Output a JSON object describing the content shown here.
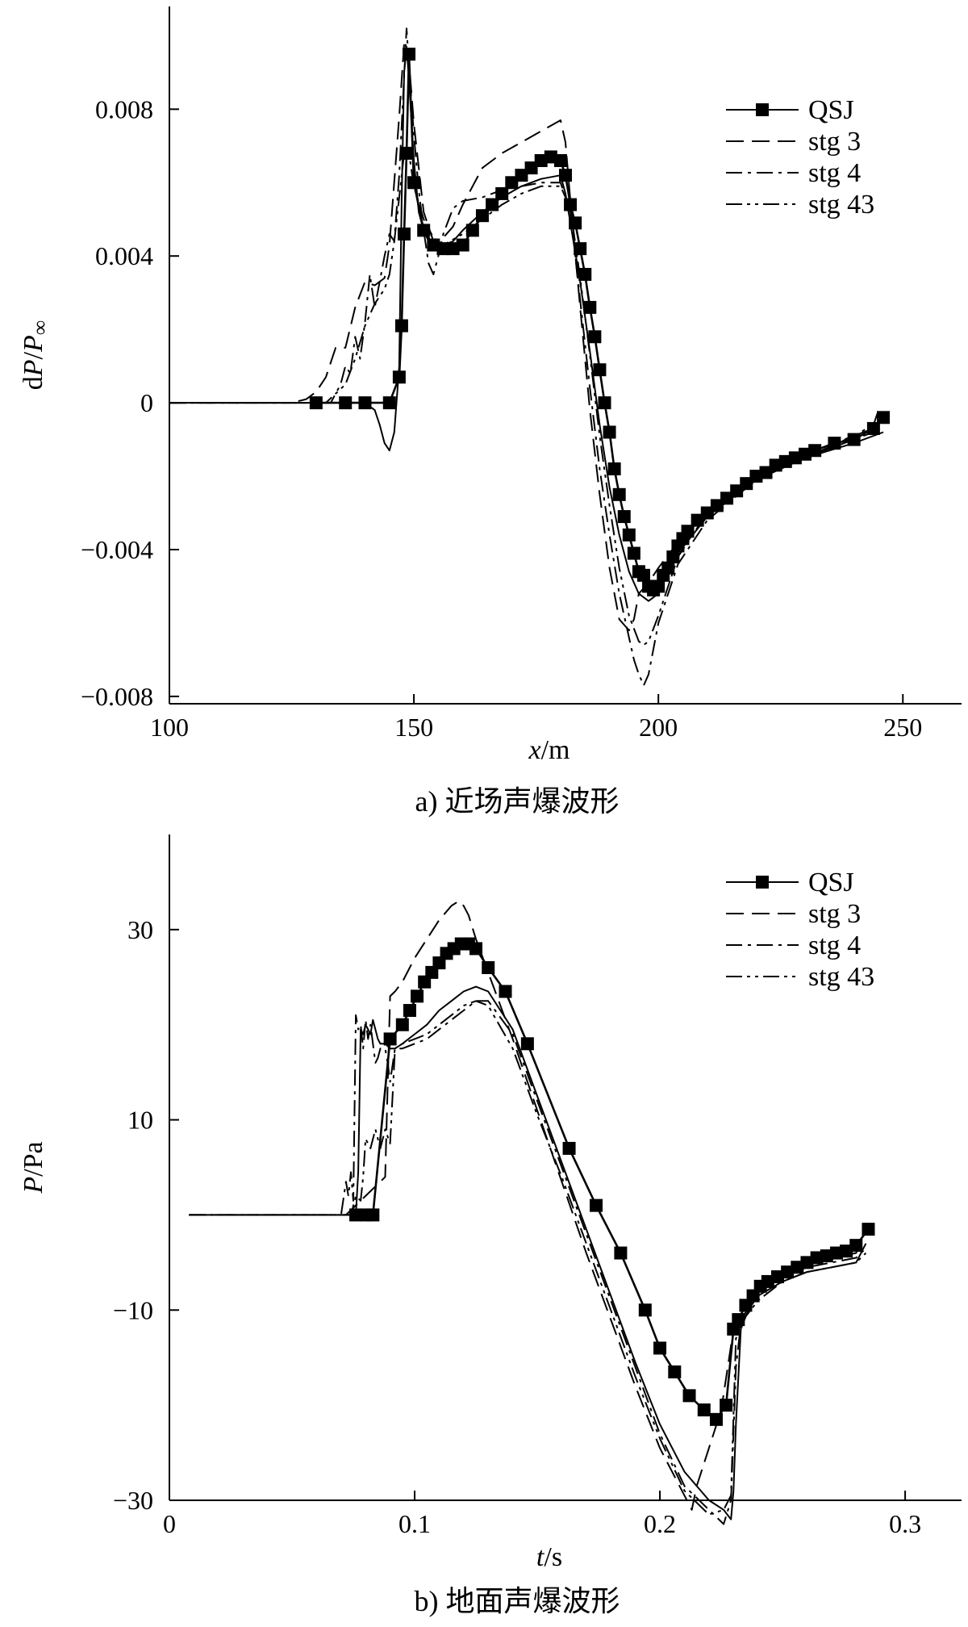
{
  "chart_data": [
    {
      "type": "line",
      "caption": "a)   近场声爆波形",
      "xlabel_var": "x",
      "xlabel_unit": "/m",
      "ylabel_prefix": "d",
      "ylabel_var": "P",
      "ylabel_mid": "/",
      "ylabel_den": "P",
      "ylabel_sub": "∞",
      "xlim": [
        100,
        262
      ],
      "ylim": [
        -0.0082,
        0.0108
      ],
      "xticks": [
        100,
        150,
        200,
        250
      ],
      "xtick_labels": [
        "100",
        "150",
        "200",
        "250"
      ],
      "yticks": [
        -0.008,
        -0.004,
        0,
        0.004,
        0.008
      ],
      "ytick_labels": [
        "−0.008",
        "−0.004",
        "0",
        "0.004",
        "0.008"
      ],
      "grid": false,
      "legend_position": "top-right",
      "series": [
        {
          "name": "QSJ",
          "style": "solid-square-markers",
          "x": [
            130,
            136,
            140,
            145,
            147,
            147.5,
            148,
            148.5,
            149,
            150,
            152,
            154,
            156,
            158,
            160,
            162,
            164,
            166,
            168,
            170,
            172,
            174,
            176,
            178,
            180,
            181,
            182,
            183,
            184,
            185,
            186,
            187,
            188,
            189,
            190,
            191,
            192,
            193,
            194,
            195,
            196,
            197,
            198,
            199,
            200,
            201,
            202,
            203,
            204,
            205,
            206,
            208,
            210,
            212,
            214,
            216,
            218,
            220,
            222,
            224,
            226,
            228,
            230,
            232,
            236,
            240,
            244,
            246
          ],
          "y": [
            0,
            0,
            0,
            0,
            0.0007,
            0.0021,
            0.0046,
            0.0068,
            0.0095,
            0.006,
            0.0047,
            0.0043,
            0.0042,
            0.0042,
            0.0043,
            0.0047,
            0.0051,
            0.0054,
            0.0057,
            0.006,
            0.0062,
            0.0064,
            0.0066,
            0.0067,
            0.0066,
            0.0062,
            0.0054,
            0.0049,
            0.0042,
            0.0035,
            0.0026,
            0.0018,
            0.0009,
            0.0,
            -0.0008,
            -0.0018,
            -0.0025,
            -0.0031,
            -0.0036,
            -0.0041,
            -0.0046,
            -0.0047,
            -0.005,
            -0.0051,
            -0.005,
            -0.0047,
            -0.0045,
            -0.0042,
            -0.0039,
            -0.0037,
            -0.0035,
            -0.0032,
            -0.003,
            -0.0028,
            -0.0026,
            -0.0024,
            -0.0022,
            -0.002,
            -0.0019,
            -0.0017,
            -0.0016,
            -0.0015,
            -0.0014,
            -0.0013,
            -0.0011,
            -0.001,
            -0.0007,
            -0.0004
          ]
        },
        {
          "name": "stg 3",
          "style": "dashed",
          "x": [
            100,
            125,
            128,
            130,
            132,
            134,
            136,
            138,
            140,
            142,
            144,
            145,
            147,
            148,
            149,
            150,
            152,
            154,
            156,
            158,
            160,
            164,
            168,
            172,
            176,
            180,
            181,
            182,
            184,
            186,
            188,
            190,
            192,
            194,
            195,
            196,
            198,
            200,
            204,
            210,
            220,
            230,
            240,
            244
          ],
          "y": [
            0,
            0,
            0.0001,
            0.0003,
            0.0007,
            0.0015,
            0.0015,
            0.0026,
            0.0033,
            0.0032,
            0.0034,
            0.0043,
            0.0078,
            0.0098,
            0.0093,
            0.0076,
            0.0052,
            0.0044,
            0.0045,
            0.0048,
            0.0054,
            0.0064,
            0.0068,
            0.0071,
            0.0074,
            0.0077,
            0.0071,
            0.0055,
            0.0026,
            -0.0002,
            -0.0025,
            -0.0045,
            -0.0059,
            -0.0062,
            -0.0059,
            -0.0052,
            -0.0049,
            -0.0045,
            -0.0038,
            -0.003,
            -0.0021,
            -0.0015,
            -0.001,
            -0.0008
          ]
        },
        {
          "name": "stg 4",
          "style": "dash-dot",
          "x": [
            100,
            130,
            133,
            135,
            136,
            137,
            138,
            139,
            140,
            141,
            142,
            143,
            144,
            145,
            146,
            147,
            148,
            148.5,
            149,
            150,
            151,
            152,
            153,
            154,
            155,
            156,
            158,
            160,
            164,
            168,
            172,
            176,
            180,
            182,
            184,
            186,
            188,
            190,
            192,
            194,
            195,
            196,
            197,
            198,
            199,
            200,
            204,
            210,
            220,
            230,
            240,
            244,
            245
          ],
          "y": [
            0,
            0,
            0,
            0.0005,
            0.001,
            0.0008,
            0.0018,
            0.0012,
            0.0022,
            0.0035,
            0.0026,
            0.0033,
            0.004,
            0.0046,
            0.0044,
            0.0062,
            0.0089,
            0.0102,
            0.0092,
            0.0073,
            0.0058,
            0.0047,
            0.0038,
            0.0035,
            0.004,
            0.0046,
            0.0053,
            0.0055,
            0.0056,
            0.0058,
            0.0059,
            0.006,
            0.006,
            0.0052,
            0.0028,
            0.0004,
            -0.0018,
            -0.0036,
            -0.0052,
            -0.0064,
            -0.007,
            -0.0074,
            -0.0077,
            -0.0074,
            -0.0067,
            -0.006,
            -0.0044,
            -0.0032,
            -0.0021,
            -0.0015,
            -0.0009,
            -0.0006,
            -0.0002
          ]
        },
        {
          "name": "stg 43",
          "style": "dash-dot-dot",
          "x": [
            100,
            132,
            136,
            138,
            140,
            142,
            144,
            145,
            146,
            147,
            148,
            149,
            150,
            152,
            154,
            156,
            160,
            164,
            168,
            172,
            176,
            180,
            182,
            184,
            186,
            188,
            190,
            192,
            194,
            196,
            197,
            198,
            200,
            204,
            210,
            220,
            230,
            240,
            244
          ],
          "y": [
            0,
            0,
            0.0005,
            0.0012,
            0.0021,
            0.0027,
            0.0031,
            0.0035,
            0.0044,
            0.0056,
            0.0068,
            0.0068,
            0.0059,
            0.005,
            0.0045,
            0.0043,
            0.0046,
            0.005,
            0.0054,
            0.0057,
            0.0059,
            0.0059,
            0.0053,
            0.0034,
            0.0013,
            -0.0009,
            -0.0028,
            -0.0045,
            -0.0058,
            -0.0065,
            -0.0066,
            -0.0065,
            -0.0058,
            -0.0042,
            -0.003,
            -0.002,
            -0.0014,
            -0.0009,
            -0.0007
          ]
        },
        {
          "name": "",
          "style": "solid",
          "x": [
            100,
            136,
            140,
            142,
            143,
            144,
            145,
            146,
            147,
            147.5,
            148,
            148.5,
            149,
            150,
            151,
            152,
            153,
            154,
            156,
            158,
            160,
            164,
            168,
            172,
            176,
            180,
            181,
            182,
            184,
            186,
            188,
            190,
            192,
            194,
            196,
            198,
            200,
            202,
            204,
            210,
            220,
            230,
            240,
            246
          ],
          "y": [
            0,
            0,
            0,
            -0.0002,
            -0.0006,
            -0.0011,
            -0.0013,
            -0.0008,
            0.001,
            0.0055,
            0.009,
            0.0097,
            0.0088,
            0.0066,
            0.0052,
            0.0047,
            0.0044,
            0.0043,
            0.0043,
            0.0044,
            0.0047,
            0.0052,
            0.0056,
            0.0059,
            0.0061,
            0.0062,
            0.0057,
            0.0049,
            0.0033,
            0.0014,
            -0.0006,
            -0.0023,
            -0.0036,
            -0.0046,
            -0.0052,
            -0.0054,
            -0.0052,
            -0.0046,
            -0.0041,
            -0.0031,
            -0.0021,
            -0.0015,
            -0.0011,
            -0.0008
          ]
        }
      ]
    },
    {
      "type": "line",
      "caption": "b)   地面声爆波形",
      "xlabel_var": "t",
      "xlabel_unit": "/s",
      "ylabel_var": "P",
      "ylabel_unit": "/Pa",
      "xlim": [
        0,
        0.323
      ],
      "ylim": [
        -30,
        40
      ],
      "xticks": [
        0,
        0.1,
        0.2,
        0.3
      ],
      "xtick_labels": [
        "0",
        "0.1",
        "0.2",
        "0.3"
      ],
      "yticks": [
        -30,
        -10,
        10,
        30
      ],
      "ytick_labels": [
        "−30",
        "−10",
        "10",
        "30"
      ],
      "grid": false,
      "legend_position": "top-right",
      "series": [
        {
          "name": "QSJ",
          "style": "solid-square-markers",
          "x": [
            0.076,
            0.08,
            0.083,
            0.09,
            0.095,
            0.098,
            0.101,
            0.104,
            0.107,
            0.11,
            0.113,
            0.116,
            0.119,
            0.122,
            0.125,
            0.13,
            0.137,
            0.146,
            0.163,
            0.174,
            0.184,
            0.194,
            0.2,
            0.206,
            0.212,
            0.218,
            0.223,
            0.227,
            0.23,
            0.232,
            0.235,
            0.238,
            0.241,
            0.244,
            0.248,
            0.252,
            0.256,
            0.26,
            0.264,
            0.268,
            0.272,
            0.276,
            0.28,
            0.285
          ],
          "y": [
            0,
            0,
            0,
            18.5,
            20,
            21.5,
            23,
            24.5,
            25.5,
            26.5,
            27.5,
            28,
            28.5,
            28.5,
            28,
            26,
            23.5,
            18,
            7,
            1,
            -4,
            -10,
            -14,
            -16.5,
            -19,
            -20.5,
            -21.5,
            -20,
            -12,
            -11,
            -9.5,
            -8.5,
            -7.5,
            -7,
            -6.5,
            -6,
            -5.5,
            -5,
            -4.5,
            -4.3,
            -4,
            -3.8,
            -3.2,
            -1.5
          ]
        },
        {
          "name": "stg 3",
          "style": "dashed",
          "x": [
            0.008,
            0.072,
            0.074,
            0.076,
            0.078,
            0.08,
            0.082,
            0.084,
            0.086,
            0.088,
            0.09,
            0.092,
            0.095,
            0.1,
            0.105,
            0.11,
            0.115,
            0.118,
            0.12,
            0.122,
            0.125,
            0.13,
            0.14,
            0.15,
            0.16,
            0.17,
            0.18,
            0.19,
            0.2,
            0.21,
            0.213,
            0.215,
            0.22,
            0.225,
            0.23,
            0.235,
            0.24,
            0.25,
            0.26,
            0.27,
            0.28,
            0.285
          ],
          "y": [
            0,
            0,
            0.5,
            1,
            1.5,
            2,
            2.5,
            3,
            3.5,
            4,
            23,
            23.5,
            24.5,
            27,
            29,
            31,
            32.5,
            33,
            32.5,
            31.5,
            29,
            25.5,
            18.5,
            11,
            3.5,
            -4,
            -11,
            -18,
            -24.5,
            -29.5,
            -31,
            -28.5,
            -24.5,
            -20.5,
            -12,
            -9.5,
            -7.5,
            -6,
            -5,
            -4.5,
            -4,
            -1
          ]
        },
        {
          "name": "stg 4",
          "style": "dash-dot",
          "x": [
            0.008,
            0.07,
            0.072,
            0.073,
            0.074,
            0.075,
            0.076,
            0.077,
            0.078,
            0.079,
            0.08,
            0.081,
            0.082,
            0.083,
            0.084,
            0.085,
            0.086,
            0.087,
            0.088,
            0.089,
            0.09,
            0.092,
            0.095,
            0.1,
            0.105,
            0.11,
            0.115,
            0.12,
            0.125,
            0.13,
            0.14,
            0.15,
            0.16,
            0.17,
            0.18,
            0.19,
            0.2,
            0.21,
            0.22,
            0.226,
            0.229,
            0.231,
            0.233,
            0.236,
            0.24,
            0.25,
            0.26,
            0.27,
            0.28,
            0.284
          ],
          "y": [
            0,
            0,
            3.5,
            2,
            4.5,
            1.5,
            21,
            19.5,
            20,
            17.5,
            20.5,
            18.5,
            20,
            18,
            16,
            16.5,
            17.5,
            17.5,
            17.5,
            16,
            14,
            17.5,
            17.5,
            18,
            18.5,
            19.5,
            20.5,
            21.5,
            22.5,
            22.5,
            19,
            12,
            5,
            -2,
            -9,
            -16,
            -23,
            -28.5,
            -31,
            -32.5,
            -30,
            -16,
            -11.5,
            -9.5,
            -8,
            -6.5,
            -5.5,
            -5,
            -4.5,
            -3.5
          ]
        },
        {
          "name": "stg 43",
          "style": "dash-dot-dot",
          "x": [
            0.008,
            0.074,
            0.076,
            0.078,
            0.079,
            0.08,
            0.082,
            0.084,
            0.086,
            0.088,
            0.09,
            0.092,
            0.095,
            0.1,
            0.105,
            0.11,
            0.115,
            0.12,
            0.125,
            0.13,
            0.14,
            0.15,
            0.16,
            0.17,
            0.18,
            0.19,
            0.2,
            0.21,
            0.22,
            0.226,
            0.229,
            0.231,
            0.234,
            0.24,
            0.25,
            0.26,
            0.27,
            0.28,
            0.284
          ],
          "y": [
            0,
            0,
            2,
            1.5,
            4,
            8,
            7,
            9,
            7,
            9,
            7.5,
            17.5,
            18,
            18.5,
            19,
            20,
            21,
            22,
            22.5,
            22,
            17.5,
            10.5,
            4,
            -3,
            -10,
            -17,
            -23.5,
            -29,
            -31.5,
            -31,
            -29.5,
            -13,
            -11,
            -9,
            -7,
            -6,
            -5.5,
            -5,
            -4
          ]
        },
        {
          "name": "",
          "style": "solid",
          "x": [
            0.008,
            0.076,
            0.077,
            0.078,
            0.079,
            0.08,
            0.081,
            0.082,
            0.083,
            0.084,
            0.085,
            0.086,
            0.088,
            0.09,
            0.092,
            0.095,
            0.1,
            0.105,
            0.11,
            0.115,
            0.12,
            0.125,
            0.13,
            0.14,
            0.15,
            0.16,
            0.17,
            0.18,
            0.19,
            0.2,
            0.21,
            0.22,
            0.226,
            0.229,
            0.23,
            0.231,
            0.233,
            0.236,
            0.24,
            0.25,
            0.26,
            0.27,
            0.28,
            0.284
          ],
          "y": [
            0,
            0,
            4.5,
            19.5,
            19,
            20,
            19.5,
            19,
            20.5,
            19.5,
            18.5,
            18,
            18,
            17.5,
            17.5,
            18,
            19,
            20,
            21.5,
            22.5,
            23.5,
            24,
            23.5,
            19.5,
            12.5,
            5.5,
            -1.5,
            -8.5,
            -15.5,
            -22,
            -27,
            -30,
            -31,
            -32,
            -29,
            -22,
            -12,
            -10,
            -8.5,
            -7,
            -6,
            -5.5,
            -5,
            -3
          ]
        }
      ]
    }
  ]
}
